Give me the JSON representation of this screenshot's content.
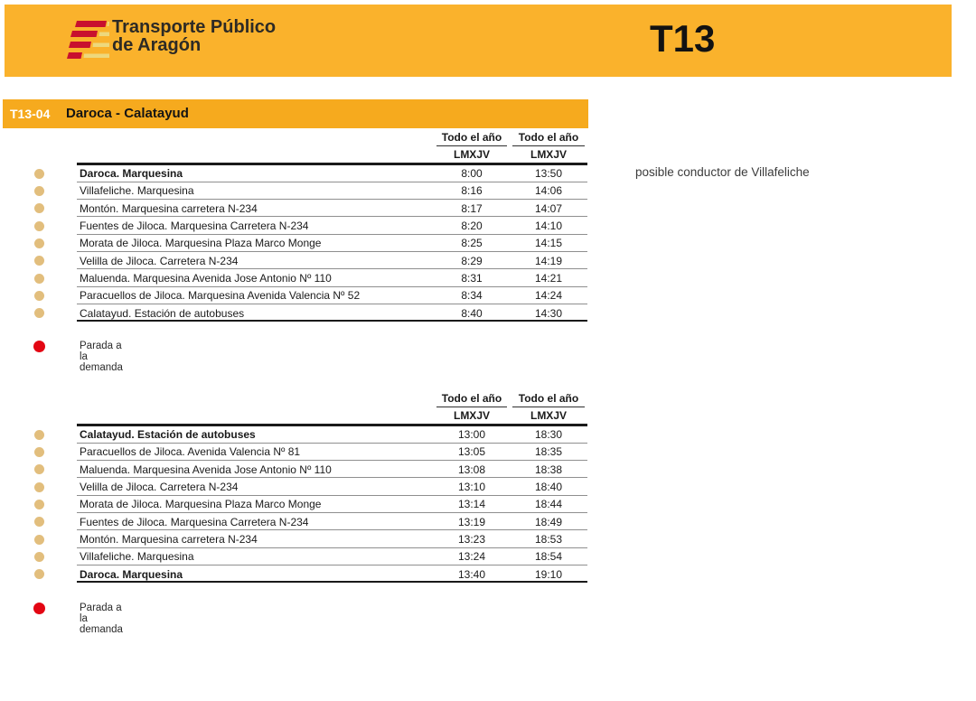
{
  "header": {
    "brand_line1": "Transporte Público",
    "brand_line2": "de Aragón",
    "route_code": "T13"
  },
  "route_bar": {
    "code": "T13-04",
    "name": "Daroca - Calatayud"
  },
  "note": "posible conductor de Villafeliche",
  "legend_label": "Parada a la demanda",
  "tables": [
    {
      "col_headers": [
        "Todo el año",
        "Todo el año"
      ],
      "sub_headers": [
        "LMXJV",
        "LMXJV"
      ],
      "rows": [
        {
          "stop": "Daroca. Marquesina",
          "bold": true,
          "times": [
            "8:00",
            "13:50"
          ]
        },
        {
          "stop": "Villafeliche. Marquesina",
          "bold": false,
          "times": [
            "8:16",
            "14:06"
          ]
        },
        {
          "stop": "Montón. Marquesina carretera N-234",
          "bold": false,
          "times": [
            "8:17",
            "14:07"
          ]
        },
        {
          "stop": "Fuentes de Jiloca. Marquesina Carretera N-234",
          "bold": false,
          "times": [
            "8:20",
            "14:10"
          ]
        },
        {
          "stop": "Morata de Jiloca. Marquesina Plaza Marco Monge",
          "bold": false,
          "times": [
            "8:25",
            "14:15"
          ]
        },
        {
          "stop": "Velilla de Jiloca. Carretera N-234",
          "bold": false,
          "times": [
            "8:29",
            "14:19"
          ]
        },
        {
          "stop": "Maluenda. Marquesina Avenida Jose Antonio Nº 110",
          "bold": false,
          "times": [
            "8:31",
            "14:21"
          ]
        },
        {
          "stop": "Paracuellos de Jiloca. Marquesina Avenida Valencia Nº 52",
          "bold": false,
          "times": [
            "8:34",
            "14:24"
          ]
        },
        {
          "stop": "Calatayud. Estación de autobuses",
          "bold": false,
          "times": [
            "8:40",
            "14:30"
          ]
        }
      ]
    },
    {
      "col_headers": [
        "Todo el año",
        "Todo el año"
      ],
      "sub_headers": [
        "LMXJV",
        "LMXJV"
      ],
      "rows": [
        {
          "stop": "Calatayud. Estación de autobuses",
          "bold": true,
          "times": [
            "13:00",
            "18:30"
          ]
        },
        {
          "stop": "Paracuellos de Jiloca. Avenida Valencia Nº 81",
          "bold": false,
          "times": [
            "13:05",
            "18:35"
          ]
        },
        {
          "stop": "Maluenda. Marquesina Avenida Jose Antonio Nº 110",
          "bold": false,
          "times": [
            "13:08",
            "18:38"
          ]
        },
        {
          "stop": "Velilla de Jiloca. Carretera N-234",
          "bold": false,
          "times": [
            "13:10",
            "18:40"
          ]
        },
        {
          "stop": "Morata de Jiloca. Marquesina Plaza Marco Monge",
          "bold": false,
          "times": [
            "13:14",
            "18:44"
          ]
        },
        {
          "stop": "Fuentes de Jiloca. Marquesina Carretera N-234",
          "bold": false,
          "times": [
            "13:19",
            "18:49"
          ]
        },
        {
          "stop": "Montón. Marquesina carretera N-234",
          "bold": false,
          "times": [
            "13:23",
            "18:53"
          ]
        },
        {
          "stop": "Villafeliche. Marquesina",
          "bold": false,
          "times": [
            "13:24",
            "18:54"
          ]
        },
        {
          "stop": "Daroca. Marquesina",
          "bold": true,
          "times": [
            "13:40",
            "19:10"
          ]
        }
      ]
    }
  ],
  "colors": {
    "banner": "#FAB22C",
    "route_bar": "#F6AA1E",
    "bullet": "#E2BE7D",
    "demand_dot": "#E30613",
    "logo_red": "#C8102E",
    "logo_pale": "#EDD87C",
    "text": "#1a1a1a"
  }
}
